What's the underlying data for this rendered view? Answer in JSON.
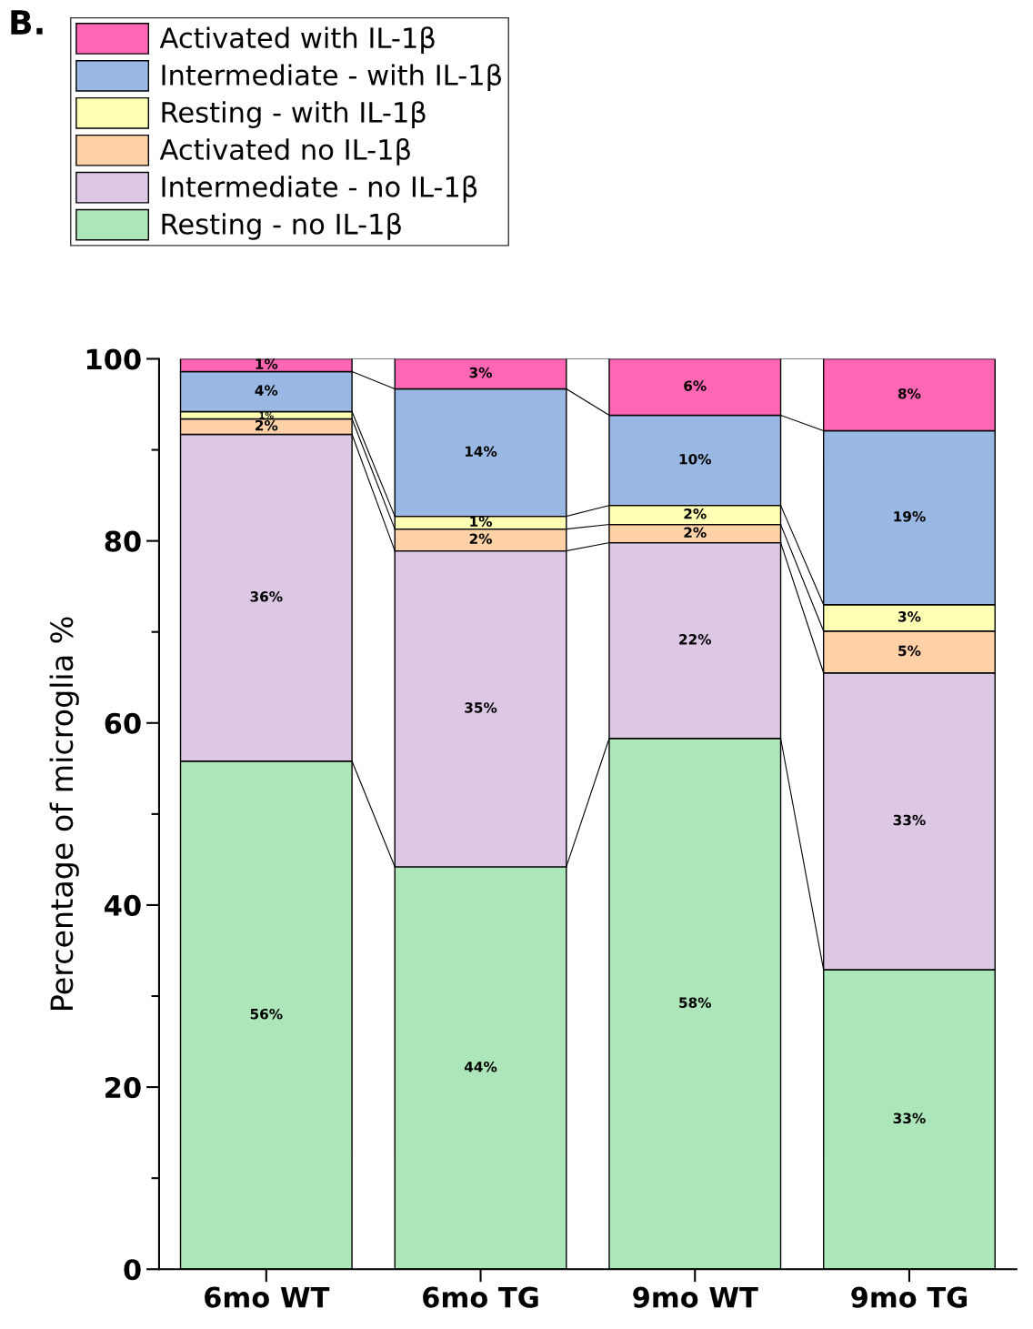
{
  "chart_data": {
    "type": "bar",
    "stacked": true,
    "ylabel": "Percentage of microglia %",
    "categories": [
      "6mo WT",
      "6mo TG",
      "9mo WT",
      "9mo TG"
    ],
    "ylim": [
      0,
      100
    ],
    "yticks": [
      0,
      {
        "value": 10,
        "label": null
      },
      20,
      {
        "value": 30,
        "label": null
      },
      40,
      {
        "value": 50,
        "label": null
      },
      60,
      {
        "value": 70,
        "label": null
      },
      80,
      {
        "value": 90,
        "label": null
      },
      100
    ],
    "legend": "top left",
    "annotations": [
      "B."
    ],
    "series": [
      {
        "name": "Resting - no IL-1β",
        "color": "#ace6b9",
        "values": [
          55.8,
          44.2,
          58.3,
          32.9
        ],
        "value_labels": [
          "56%",
          "44%",
          "58%",
          "33%"
        ]
      },
      {
        "name": "Intermediate - no IL-1β",
        "color": "#dcc8e4",
        "values": [
          35.9,
          34.7,
          21.5,
          32.6
        ],
        "value_labels": [
          "36%",
          "35%",
          "22%",
          "33%"
        ]
      },
      {
        "name": "Activated no IL-1β",
        "color": "#ffd1a6",
        "values": [
          1.7,
          2.4,
          2.0,
          4.6
        ],
        "value_labels": [
          "2%",
          "2%",
          "2%",
          "5%"
        ]
      },
      {
        "name": "Resting - with IL-1β",
        "color": "#ffffb3",
        "values": [
          0.8,
          1.4,
          2.1,
          2.9
        ],
        "value_labels": [
          "1%",
          "1%",
          "2%",
          "3%"
        ]
      },
      {
        "name": "Intermediate - with IL-1β",
        "color": "#99b8e3",
        "values": [
          4.4,
          14.0,
          9.9,
          19.1
        ],
        "value_labels": [
          "4%",
          "14%",
          "10%",
          "19%"
        ]
      },
      {
        "name": "Activated with IL-1β",
        "color": "#ff66b3",
        "values": [
          1.4,
          3.3,
          6.2,
          7.9
        ],
        "value_labels": [
          "1%",
          "3%",
          "6%",
          "8%"
        ]
      }
    ]
  }
}
